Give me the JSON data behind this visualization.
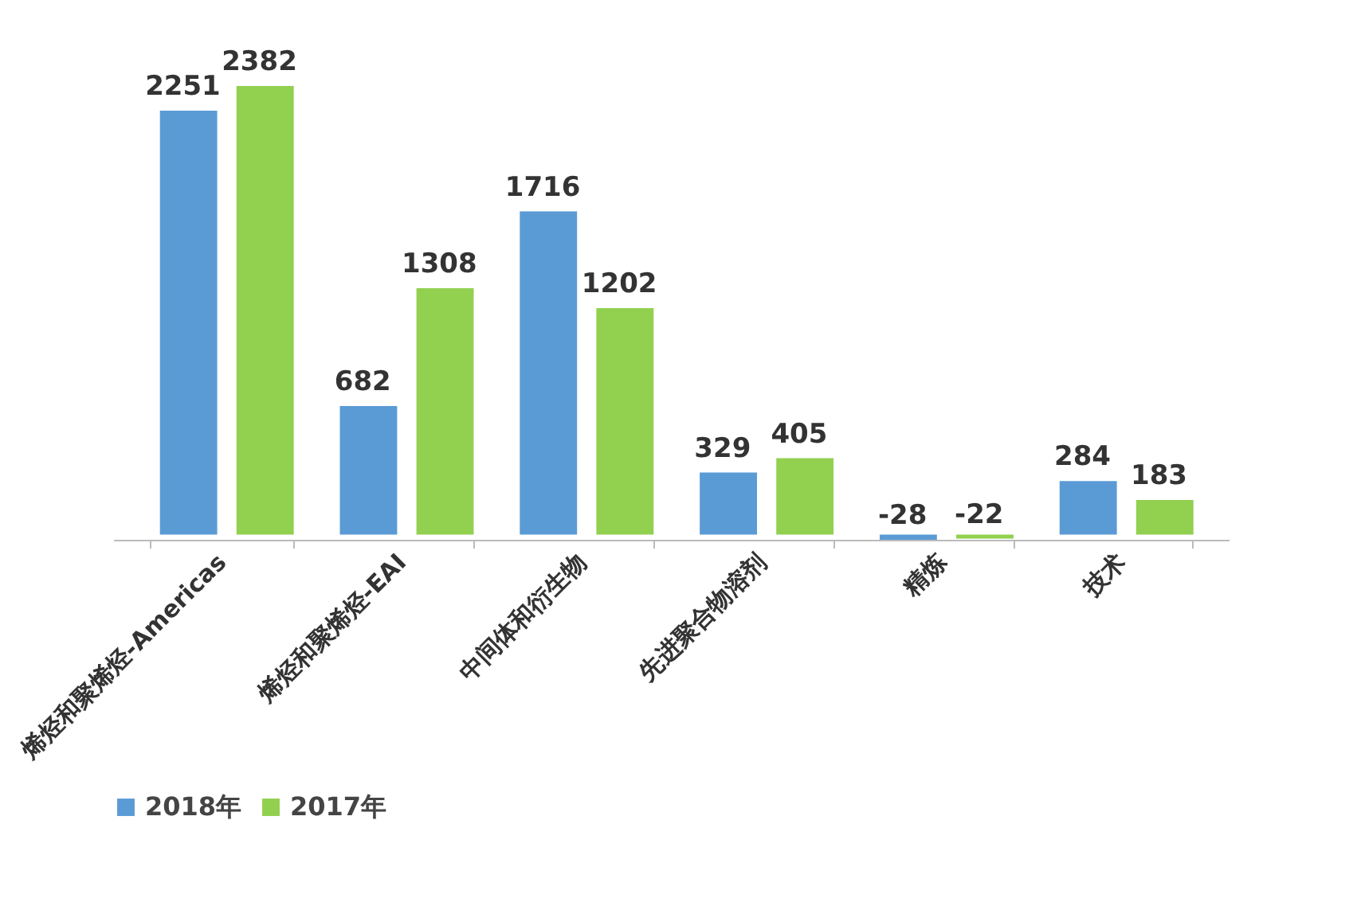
{
  "chart_data": {
    "type": "bar",
    "categories": [
      "烯烃和聚烯烃-Americas",
      "烯烃和聚烯烃-EAI",
      "中间体和衍生物",
      "先进聚合物溶剂",
      "精炼",
      "技术"
    ],
    "series": [
      {
        "name": "2018年",
        "color": "#5b9bd5",
        "values": [
          2251,
          682,
          1716,
          329,
          -28,
          284
        ]
      },
      {
        "name": "2017年",
        "color": "#92d050",
        "values": [
          2382,
          1308,
          1202,
          405,
          -22,
          183
        ]
      }
    ],
    "data_labels": true,
    "grid": false,
    "legend": "bottom"
  }
}
